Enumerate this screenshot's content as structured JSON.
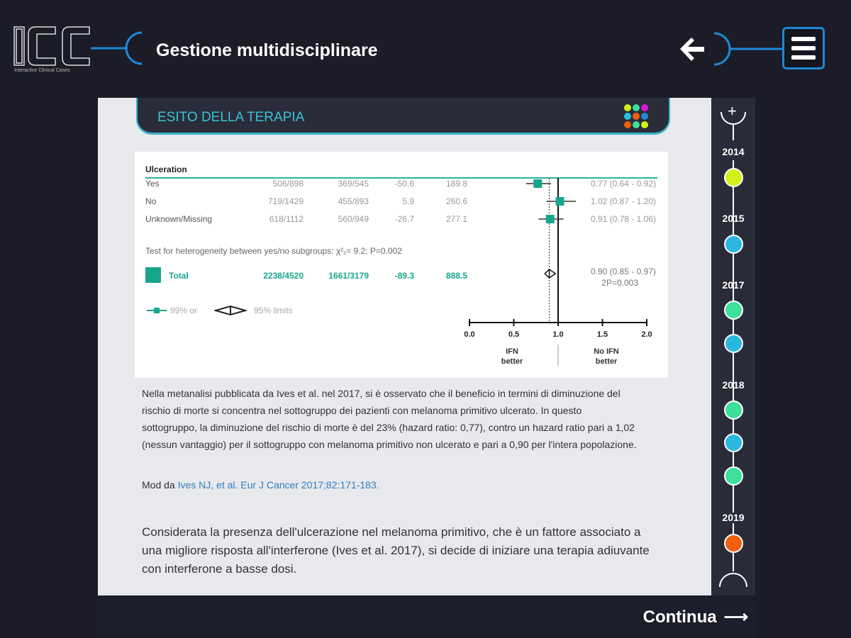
{
  "header": {
    "title": "Gestione multidisciplinare",
    "logo_text": "ICC",
    "logo_subtitle": "Interactive Clinical Cases",
    "back_icon": "arrow-left-icon",
    "menu_icon": "hamburger-icon",
    "accent": "#1e88d6"
  },
  "section": {
    "title": "ESITO DELLA TERAPIA",
    "grid_dot_colors": [
      "#d4f01c",
      "#3de09a",
      "#d81ad8",
      "#2bc0e0",
      "#f06010",
      "#1e88d6",
      "#f06010",
      "#3de09a",
      "#d4f01c"
    ]
  },
  "chart_data": {
    "type": "forest",
    "group_label": "Ulceration",
    "rows": [
      {
        "label": "Yes",
        "col1": "506/898",
        "col2": "369/545",
        "col3": "-50.6",
        "col4": "189.8",
        "or": 0.77,
        "ci_low": 0.64,
        "ci_high": 0.92,
        "ci_text": "0.77 (0.64 - 0.92)"
      },
      {
        "label": "No",
        "col1": "719/1429",
        "col2": "455/893",
        "col3": "5.9",
        "col4": "260.6",
        "or": 1.02,
        "ci_low": 0.87,
        "ci_high": 1.2,
        "ci_text": "1.02 (0.87 - 1.20)"
      },
      {
        "label": "Unknown/Missing",
        "col1": "618/1112",
        "col2": "560/949",
        "col3": "-26.7",
        "col4": "277.1",
        "or": 0.91,
        "ci_low": 0.78,
        "ci_high": 1.06,
        "ci_text": "0.91 (0.78 - 1.06)"
      }
    ],
    "heterogeneity": "Test for heterogeneity between yes/no subgroups: χ²₁= 9.2; P=0.002",
    "total": {
      "label": "Total",
      "col1": "2238/4520",
      "col2": "1661/3179",
      "col3": "-89.3",
      "col4": "888.5",
      "or": 0.9,
      "ci_low": 0.85,
      "ci_high": 0.97,
      "ci_text": "0.90 (0.85 - 0.97)",
      "p_text": "2P=0.003"
    },
    "legend": {
      "or": "99% or",
      "limits": "95% limits"
    },
    "xlim": [
      0,
      2
    ],
    "xticks": [
      "0.0",
      "0.5",
      "1.0",
      "1.5",
      "2.0"
    ],
    "left_label": {
      "line1": "IFN",
      "line2": "better"
    },
    "right_label": {
      "line1": "No IFN",
      "line2": "better"
    },
    "color": "#18a58e"
  },
  "body": {
    "paragraph1": "Nella metanalisi pubblicata da Ives et al. nel 2017, si è osservato che il beneficio in termini di diminuzione del rischio di morte si concentra nel sottogruppo dei pazienti con melanoma primitivo ulcerato. In questo sottogruppo, la diminuzione del rischio di morte è del 23% (hazard ratio: 0,77), contro un hazard ratio pari a 1,02 (nessun vantaggio) per il sottogruppo con melanoma primitivo non ulcerato e pari a 0,90 per l'intera popolazione.",
    "cite_prefix": "Mod da ",
    "cite_link": "Ives NJ, et al. Eur J Cancer 2017;82:171-183.",
    "paragraph2": "Considerata la presenza dell'ulcerazione nel melanoma primitivo, che è un fattore associato a una migliore risposta all'interferone (Ives et al. 2017), si decide di iniziare una terapia adiuvante con interferone a basse dosi."
  },
  "timeline": {
    "years": [
      "2014",
      "2015",
      "2017",
      "2018",
      "2019"
    ],
    "dots": [
      {
        "color": "#d4f01c"
      },
      {
        "color": "#2bb8e0"
      },
      {
        "color": "#3de09a"
      },
      {
        "color": "#2bb8e0"
      },
      {
        "color": "#3de09a"
      },
      {
        "color": "#2bb8e0"
      },
      {
        "color": "#3de09a"
      },
      {
        "color": "#f06010"
      }
    ]
  },
  "footer": {
    "continue_label": "Continua"
  }
}
